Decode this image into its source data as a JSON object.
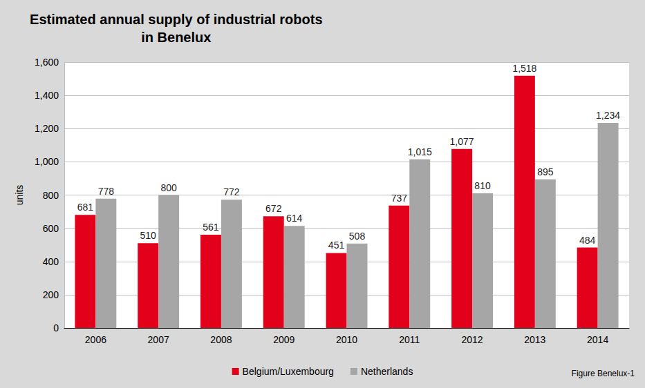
{
  "chart_data": {
    "type": "bar",
    "title": "Estimated annual supply of industrial robots\nin Benelux",
    "caption": "Figure Benelux-1",
    "y_label": "units",
    "categories": [
      "2006",
      "2007",
      "2008",
      "2009",
      "2010",
      "2011",
      "2012",
      "2013",
      "2014"
    ],
    "series": [
      {
        "name": "Belgium/Luxembourg",
        "color": "#e2001a",
        "values": [
          681,
          510,
          561,
          672,
          451,
          737,
          1077,
          1518,
          484
        ],
        "value_labels": [
          "681",
          "510",
          "561",
          "672",
          "451",
          "737",
          "1,077",
          "1,518",
          "484"
        ]
      },
      {
        "name": "Netherlands",
        "color": "#a6a6a6",
        "values": [
          778,
          800,
          772,
          614,
          508,
          1015,
          810,
          895,
          1234
        ],
        "value_labels": [
          "778",
          "800",
          "772",
          "614",
          "508",
          "1,015",
          "810",
          "895",
          "1,234"
        ]
      }
    ],
    "ylim": [
      0,
      1600
    ],
    "yticks": [
      0,
      200,
      400,
      600,
      800,
      {
        "value": 1000,
        "label": "1,000"
      },
      {
        "value": 1200,
        "label": "1,200"
      },
      {
        "value": 1400,
        "label": "1,400"
      },
      {
        "value": 1600,
        "label": "1,600"
      }
    ],
    "grid": true,
    "legend": "bottom",
    "data_labels": true
  }
}
